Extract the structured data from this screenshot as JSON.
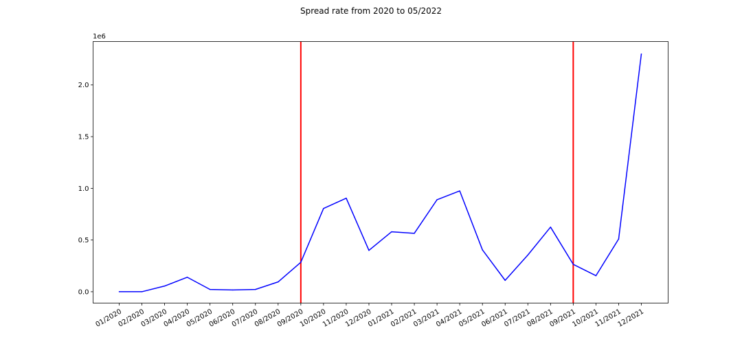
{
  "chart_data": {
    "type": "line",
    "title": "Spread rate from 2020 to 05/2022",
    "xlabel": "",
    "ylabel": "",
    "y_scale_label": "1e6",
    "y_multiplier": 1000000,
    "ylim": [
      -0.11,
      2.42
    ],
    "yticks": [
      0.0,
      0.5,
      1.0,
      1.5,
      2.0
    ],
    "ytick_labels": [
      "0.0",
      "0.5",
      "1.0",
      "1.5",
      "2.0"
    ],
    "grid": false,
    "categories": [
      "01/2020",
      "02/2020",
      "03/2020",
      "04/2020",
      "05/2020",
      "06/2020",
      "07/2020",
      "08/2020",
      "09/2020",
      "10/2020",
      "11/2020",
      "12/2020",
      "01/2021",
      "02/2021",
      "03/2021",
      "04/2021",
      "05/2021",
      "06/2021",
      "07/2021",
      "08/2021",
      "09/2021",
      "10/2021",
      "11/2021",
      "12/2021"
    ],
    "series": [
      {
        "color": "#0000ff",
        "values": [
          0,
          0,
          55000,
          140000,
          22000,
          17000,
          22000,
          95000,
          285000,
          805000,
          905000,
          400000,
          580000,
          565000,
          890000,
          975000,
          405000,
          110000,
          355000,
          625000,
          265000,
          155000,
          510000,
          2300000
        ]
      }
    ],
    "vertical_lines": [
      {
        "category": "09/2020",
        "color": "#ff0000"
      },
      {
        "category": "09/2021",
        "color": "#ff0000"
      }
    ]
  }
}
